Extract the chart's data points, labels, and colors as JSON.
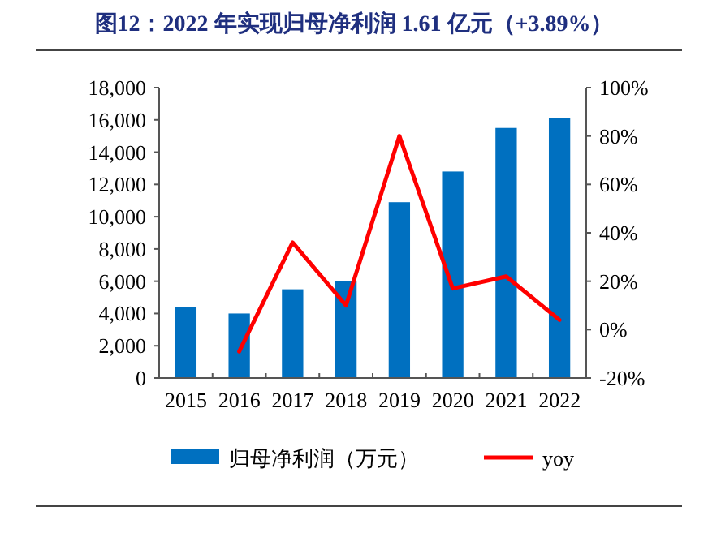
{
  "chart_data": {
    "type": "bar",
    "title": "图12：2022 年实现归母净利润 1.61 亿元（+3.89%）",
    "categories": [
      "2015",
      "2016",
      "2017",
      "2018",
      "2019",
      "2020",
      "2021",
      "2022"
    ],
    "series": [
      {
        "name": "归母净利润（万元）",
        "color": "#0070c0",
        "values": [
          4400,
          4000,
          5500,
          6000,
          10900,
          12800,
          15500,
          16100
        ]
      },
      {
        "name": "yoy",
        "type": "line",
        "axis": "y2",
        "color": "#ff0000",
        "values": [
          null,
          -9,
          36,
          10,
          80,
          17,
          22,
          4
        ]
      }
    ],
    "ylim": [
      0,
      18000
    ],
    "yticks": [
      0,
      {
        "value": 2000,
        "label": "2,000"
      },
      {
        "value": 4000,
        "label": "4,000"
      },
      {
        "value": 6000,
        "label": "6,000"
      },
      {
        "value": 8000,
        "label": "8,000"
      },
      {
        "value": 10000,
        "label": "10,000"
      },
      {
        "value": 12000,
        "label": "12,000"
      },
      {
        "value": 14000,
        "label": "14,000"
      },
      {
        "value": 16000,
        "label": "16,000"
      },
      {
        "value": 18000,
        "label": "18,000"
      }
    ],
    "y2lim": [
      -20,
      100
    ],
    "y2ticks": [
      {
        "value": -20,
        "label": "-20%"
      },
      {
        "value": 0,
        "label": "0%"
      },
      {
        "value": 20,
        "label": "20%"
      },
      {
        "value": 40,
        "label": "40%"
      },
      {
        "value": 60,
        "label": "60%"
      },
      {
        "value": 80,
        "label": "80%"
      },
      {
        "value": 100,
        "label": "100%"
      }
    ],
    "grid": false,
    "legend": "bottom"
  }
}
